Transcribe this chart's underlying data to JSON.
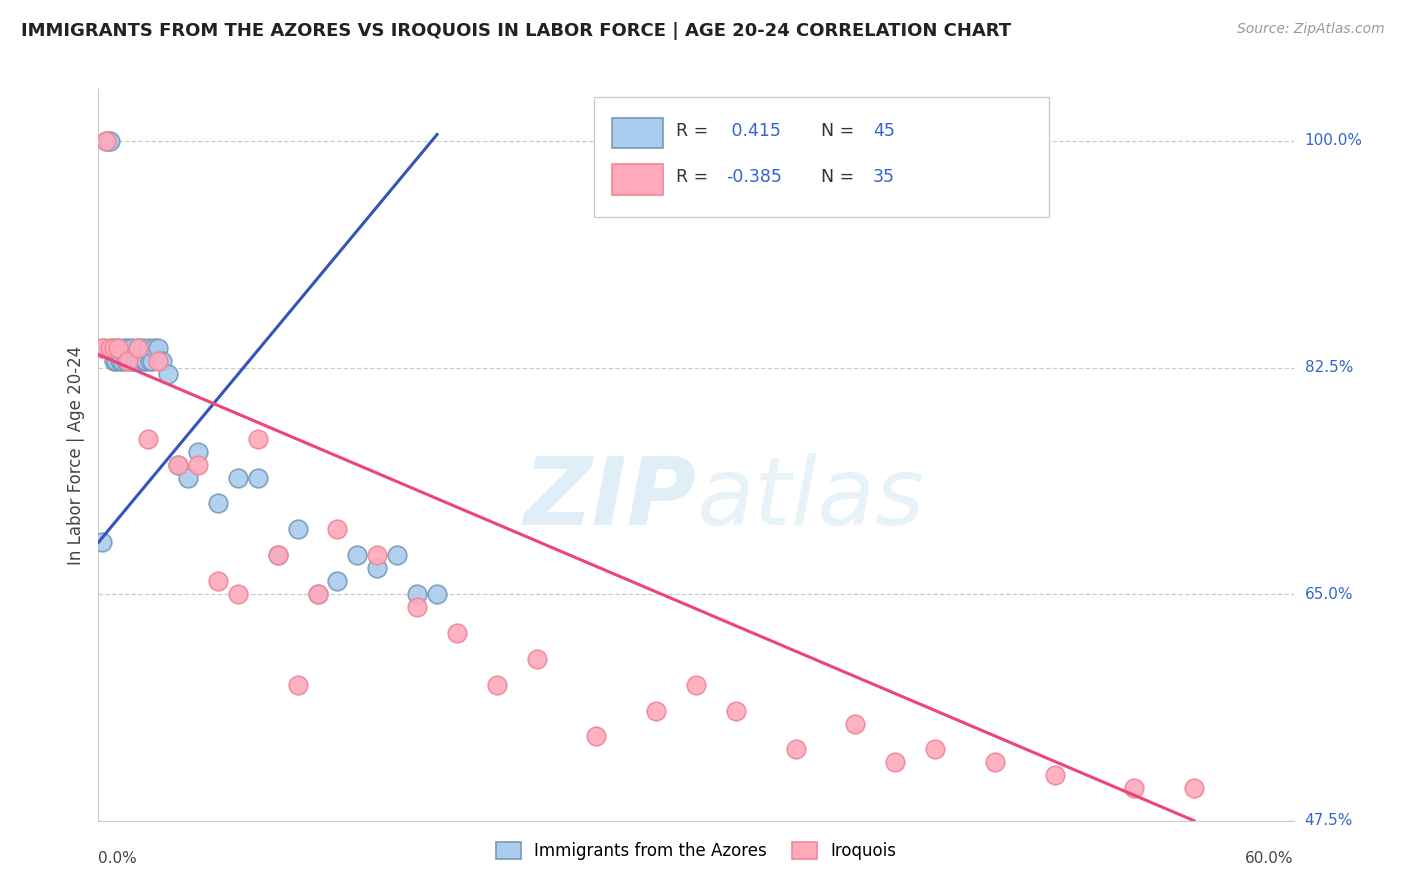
{
  "title": "IMMIGRANTS FROM THE AZORES VS IROQUOIS IN LABOR FORCE | AGE 20-24 CORRELATION CHART",
  "source": "Source: ZipAtlas.com",
  "ylabel_label": "In Labor Force | Age 20-24",
  "xmin": 0.0,
  "xmax": 60.0,
  "ymin": 47.5,
  "ymax": 104.0,
  "yticks": [
    47.5,
    65.0,
    82.5,
    100.0
  ],
  "grid_color": "#cccccc",
  "background_color": "#ffffff",
  "series1_color": "#aaccee",
  "series1_edge": "#7799bb",
  "series2_color": "#ffaabb",
  "series2_edge": "#ee8899",
  "line1_color": "#3355bb",
  "line2_color": "#ee4477",
  "R1": 0.415,
  "N1": 45,
  "R2": -0.385,
  "N2": 35,
  "legend_label1": "Immigrants from the Azores",
  "legend_label2": "Iroquois",
  "watermark_zip": "ZIP",
  "watermark_atlas": "atlas",
  "series1_x": [
    0.2,
    0.3,
    0.4,
    0.5,
    0.6,
    0.7,
    0.8,
    0.9,
    1.0,
    1.1,
    1.2,
    1.3,
    1.4,
    1.5,
    1.6,
    1.7,
    1.8,
    1.9,
    2.0,
    2.1,
    2.2,
    2.3,
    2.4,
    2.5,
    2.6,
    2.7,
    2.8,
    3.0,
    3.2,
    3.5,
    4.0,
    4.5,
    5.0,
    6.0,
    7.0,
    8.0,
    9.0,
    10.0,
    11.0,
    12.0,
    13.0,
    14.0,
    15.0,
    16.0,
    17.0
  ],
  "series1_y": [
    69.0,
    84.0,
    100.0,
    100.0,
    100.0,
    84.0,
    83.0,
    83.0,
    84.0,
    83.0,
    83.0,
    84.0,
    83.0,
    84.0,
    83.0,
    84.0,
    83.0,
    83.0,
    84.0,
    83.0,
    84.0,
    83.0,
    83.0,
    84.0,
    83.0,
    83.0,
    84.0,
    84.0,
    83.0,
    82.0,
    75.0,
    74.0,
    76.0,
    72.0,
    74.0,
    74.0,
    68.0,
    70.0,
    65.0,
    66.0,
    68.0,
    67.0,
    68.0,
    65.0,
    65.0
  ],
  "series2_x": [
    0.2,
    0.4,
    0.6,
    0.8,
    1.0,
    1.5,
    2.0,
    2.5,
    3.0,
    4.0,
    5.0,
    6.0,
    7.0,
    8.0,
    9.0,
    10.0,
    11.0,
    12.0,
    14.0,
    16.0,
    18.0,
    20.0,
    22.0,
    25.0,
    28.0,
    30.0,
    32.0,
    35.0,
    38.0,
    40.0,
    42.0,
    45.0,
    48.0,
    52.0,
    55.0
  ],
  "series2_y": [
    84.0,
    100.0,
    84.0,
    84.0,
    84.0,
    83.0,
    84.0,
    77.0,
    83.0,
    75.0,
    75.0,
    66.0,
    65.0,
    77.0,
    68.0,
    58.0,
    65.0,
    70.0,
    68.0,
    64.0,
    62.0,
    58.0,
    60.0,
    54.0,
    56.0,
    58.0,
    56.0,
    53.0,
    55.0,
    52.0,
    53.0,
    52.0,
    51.0,
    50.0,
    50.0
  ],
  "line1_x0": 0.0,
  "line1_x1": 17.0,
  "line1_y0": 69.0,
  "line1_y1": 100.5,
  "line2_x0": 0.0,
  "line2_x1": 55.0,
  "line2_y0": 83.5,
  "line2_y1": 47.5
}
